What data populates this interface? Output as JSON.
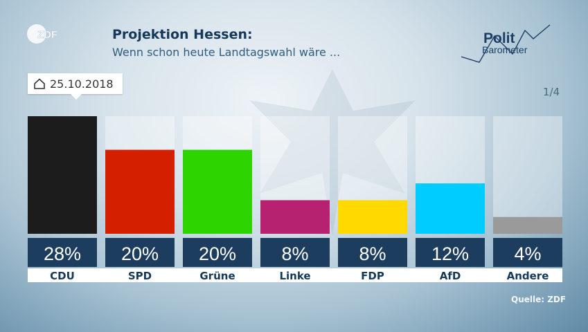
{
  "header": {
    "title": "Projektion Hessen:",
    "subtitle": "Wenn schon heute Landtagswahl wäre ..."
  },
  "logo": {
    "text": "ZDF"
  },
  "brand": {
    "line1": "Polit",
    "line2": "Barometer"
  },
  "date_label": "25.10.2018",
  "page_indicator": "1/4",
  "source": "Quelle: ZDF",
  "chart_data": {
    "type": "bar",
    "title": "Projektion Hessen:",
    "subtitle": "Wenn schon heute Landtagswahl wäre ...",
    "categories": [
      "CDU",
      "SPD",
      "Grüne",
      "Linke",
      "FDP",
      "AfD",
      "Andere"
    ],
    "values": [
      28,
      20,
      20,
      8,
      8,
      12,
      4
    ],
    "value_labels": [
      "28%",
      "20%",
      "20%",
      "8%",
      "8%",
      "12%",
      "4%"
    ],
    "colors": [
      "#1c1c1c",
      "#d41f00",
      "#2ed400",
      "#b72270",
      "#ffd900",
      "#00ccff",
      "#9a9a9a"
    ],
    "ylim": [
      0,
      28
    ],
    "unit": "%",
    "grid": false,
    "legend": "none"
  }
}
